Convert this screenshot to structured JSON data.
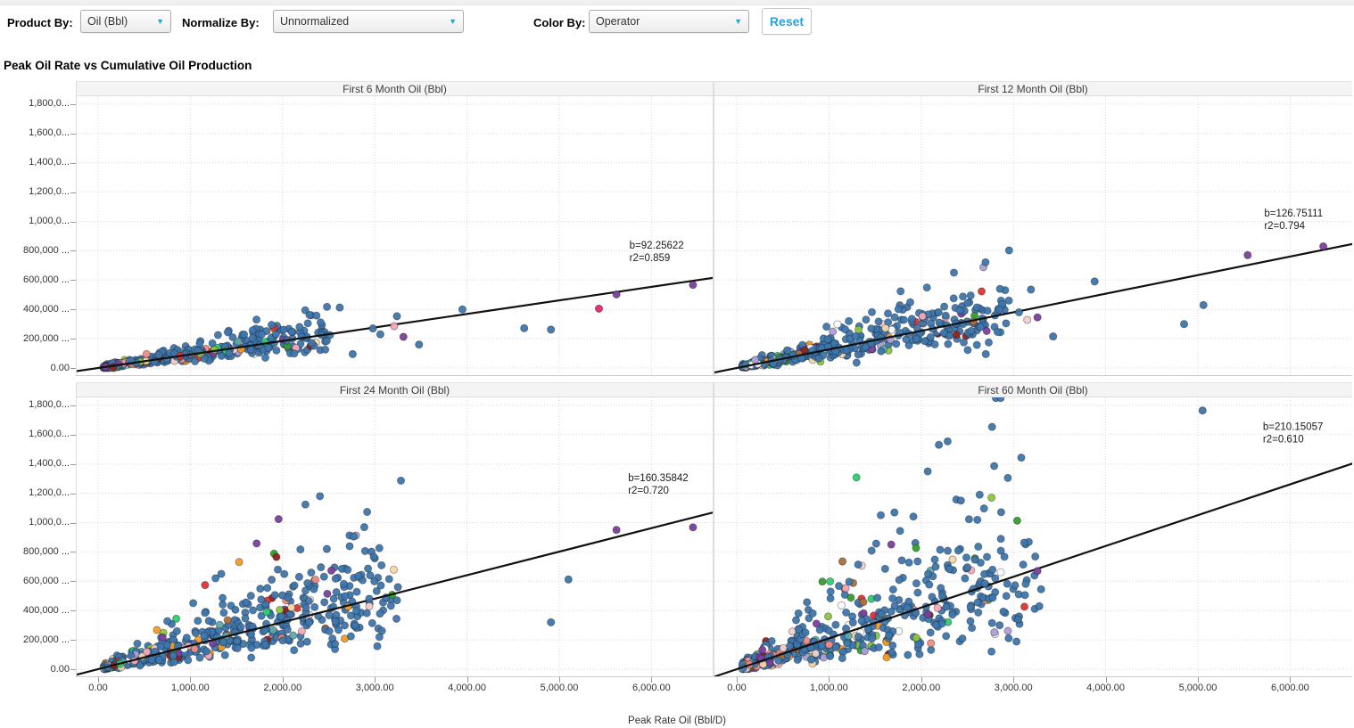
{
  "toolbar": {
    "product_by_label": "Product By:",
    "product_by_value": "Oil (Bbl)",
    "normalize_by_label": "Normalize By:",
    "normalize_by_value": "Unnormalized",
    "color_by_label": "Color By:",
    "color_by_value": "Operator",
    "reset_label": "Reset",
    "accent_color": "#2E9FD8"
  },
  "page_title": "Peak Oil Rate vs Cumulative Oil Production",
  "chart_data": {
    "type": "scatter",
    "title": "Peak Oil Rate vs Cumulative Oil Production",
    "xlabel": "Peak Rate Oil (Bbl/D)",
    "ylabel": "",
    "xlim": [
      -250,
      6700
    ],
    "ylim": [
      0,
      1850000
    ],
    "grid": "dotted",
    "x_tick_values": [
      0,
      1000,
      2000,
      3000,
      4000,
      5000,
      6000
    ],
    "x_tick_labels": [
      "0.00",
      "1,000.00",
      "2,000.00",
      "3,000.00",
      "4,000.00",
      "5,000.00",
      "6,000.00"
    ],
    "y_tick_values": [
      1800000,
      1600000,
      1400000,
      1200000,
      1000000,
      800000,
      600000,
      400000,
      200000,
      0
    ],
    "y_tick_labels": [
      "1,800,0...",
      "1,600,0...",
      "1,400,0...",
      "1,200,0...",
      "1,000,0...",
      "800,000 ...",
      "600,000 ...",
      "400,000 ...",
      "200,000 ...",
      "0.00"
    ],
    "regression_line_color": "#111111",
    "default_point_color": "#3D76AD",
    "palette": {
      "blue": "#3D76AD",
      "green": "#33A02C",
      "lime": "#8CC63E",
      "emerald": "#2ECC71",
      "red": "#E03131",
      "darkred": "#8E2323",
      "salmon": "#F28B82",
      "pink": "#F7A8B8",
      "lightpink": "#F6CFCF",
      "orange": "#F59A23",
      "brown": "#A9713A",
      "peach": "#F6D7A8",
      "purple": "#7B3F9E",
      "lavender": "#ABA0D9",
      "white": "#FCFCFC",
      "teal": "#5FA8A8",
      "magenta": "#E8256D"
    },
    "panels": [
      {
        "title": "First 6 Month Oil (Bbl)",
        "b": 92.25622,
        "r2": 0.859,
        "annotation_lines": [
          "b=92.25622",
          "r2=0.859"
        ],
        "ann_fx": 0.868,
        "ann_fy": 0.515,
        "seed": 101,
        "n": 400,
        "x_dense_max": 2450,
        "sigma": 0.3,
        "outliers": [
          [
            3950,
            400000,
            "blue"
          ],
          [
            4620,
            272000,
            "blue"
          ],
          [
            4910,
            262000,
            "blue"
          ],
          [
            5430,
            405000,
            "magenta"
          ],
          [
            5620,
            502000,
            "purple"
          ],
          [
            6450,
            567000,
            "purple"
          ],
          [
            3310,
            213000,
            "purple"
          ],
          [
            3480,
            160000,
            "blue"
          ],
          [
            3240,
            353000,
            "blue"
          ],
          [
            3210,
            286000,
            "pink"
          ],
          [
            2980,
            270000,
            "blue"
          ],
          [
            2760,
            95000,
            "blue"
          ],
          [
            2620,
            413000,
            "blue"
          ],
          [
            3060,
            230000,
            "blue"
          ]
        ]
      },
      {
        "title": "First 12 Month Oil (Bbl)",
        "b": 126.75111,
        "r2": 0.794,
        "annotation_lines": [
          "b=126.75111",
          "r2=0.794"
        ],
        "ann_fx": 0.862,
        "ann_fy": 0.4,
        "seed": 202,
        "n": 470,
        "x_dense_max": 2850,
        "sigma": 0.33,
        "outliers": [
          [
            3190,
            535000,
            "blue"
          ],
          [
            3880,
            590000,
            "blue"
          ],
          [
            5060,
            430000,
            "blue"
          ],
          [
            4850,
            300000,
            "blue"
          ],
          [
            3430,
            215000,
            "blue"
          ],
          [
            3260,
            345000,
            "purple"
          ],
          [
            3150,
            328000,
            "lightpink"
          ],
          [
            5540,
            770000,
            "purple"
          ],
          [
            6360,
            830000,
            "purple"
          ],
          [
            2950,
            460000,
            "blue"
          ],
          [
            3060,
            380000,
            "blue"
          ],
          [
            2700,
            95000,
            "blue"
          ]
        ]
      },
      {
        "title": "First 24 Month Oil (Bbl)",
        "b": 160.35842,
        "r2": 0.72,
        "annotation_lines": [
          "b=160.35842",
          "r2=0.720"
        ],
        "ann_fx": 0.866,
        "ann_fy": 0.268,
        "seed": 303,
        "n": 540,
        "x_dense_max": 3150,
        "sigma": 0.46,
        "outliers": [
          [
            5620,
            950000,
            "purple"
          ],
          [
            6450,
            968000,
            "purple"
          ],
          [
            5100,
            612000,
            "blue"
          ],
          [
            4910,
            320000,
            "blue"
          ],
          [
            2770,
            905000,
            "blue"
          ],
          [
            2480,
            820000,
            "blue"
          ],
          [
            2950,
            640000,
            "blue"
          ],
          [
            3250,
            560000,
            "blue"
          ],
          [
            3240,
            470000,
            "blue"
          ],
          [
            2940,
            430000,
            "lightpink"
          ],
          [
            2180,
            630000,
            "blue"
          ],
          [
            2940,
            480000,
            "blue"
          ]
        ]
      },
      {
        "title": "First 60 Month Oil (Bbl)",
        "b": 210.15057,
        "r2": 0.61,
        "annotation_lines": [
          "b=210.15057",
          "r2=0.610"
        ],
        "ann_fx": 0.86,
        "ann_fy": 0.085,
        "seed": 404,
        "n": 540,
        "x_dense_max": 3150,
        "sigma": 0.52,
        "outliers": [
          [
            5050,
            1765000,
            "blue"
          ],
          [
            2430,
            1150000,
            "blue"
          ],
          [
            2340,
            748000,
            "peach"
          ],
          [
            2500,
            695000,
            "blue"
          ],
          [
            3260,
            670000,
            "purple"
          ],
          [
            1146,
            735000,
            "brown"
          ],
          [
            3300,
            545000,
            "blue"
          ],
          [
            3280,
            430000,
            "blue"
          ],
          [
            2690,
            585000,
            "blue"
          ],
          [
            2850,
            300000,
            "blue"
          ],
          [
            3050,
            340000,
            "blue"
          ]
        ]
      }
    ]
  }
}
